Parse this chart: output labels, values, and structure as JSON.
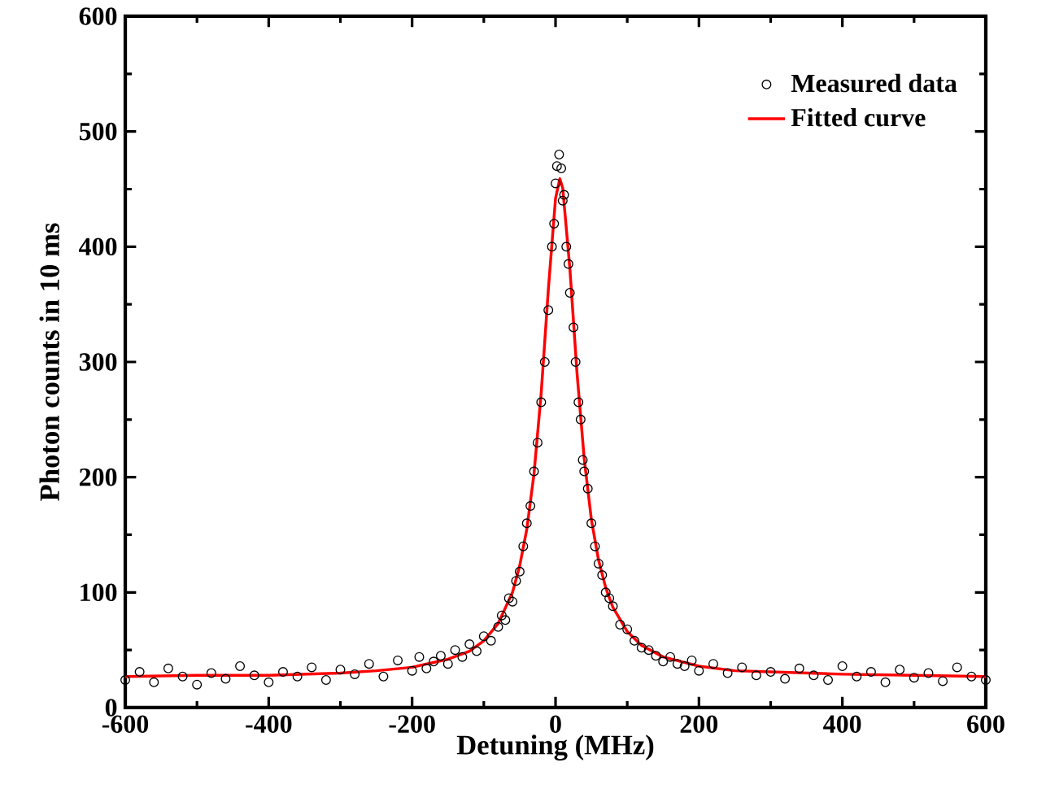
{
  "chart_data": {
    "type": "scatter",
    "xlabel": "Detuning (MHz)",
    "ylabel": "Photon counts in 10 ms",
    "xlim": [
      -600,
      600
    ],
    "ylim": [
      0,
      600
    ],
    "xticks": [
      -600,
      -400,
      -200,
      0,
      200,
      400,
      600
    ],
    "yticks": [
      0,
      100,
      200,
      300,
      400,
      500,
      600
    ],
    "grid": false,
    "legend": "top right",
    "series": [
      {
        "name": "Measured data",
        "marker": "circle",
        "color": "#000000",
        "x": [
          -600,
          -580,
          -560,
          -540,
          -520,
          -500,
          -480,
          -460,
          -440,
          -420,
          -400,
          -380,
          -360,
          -340,
          -320,
          -300,
          -280,
          -260,
          -240,
          -220,
          -200,
          -190,
          -180,
          -170,
          -160,
          -150,
          -140,
          -130,
          -120,
          -110,
          -100,
          -90,
          -80,
          -75,
          -70,
          -65,
          -60,
          -55,
          -50,
          -45,
          -40,
          -35,
          -30,
          -25,
          -20,
          -15,
          -10,
          -5,
          -2,
          0,
          2,
          5,
          8,
          10,
          12,
          15,
          18,
          20,
          25,
          28,
          32,
          35,
          38,
          40,
          45,
          50,
          55,
          60,
          65,
          70,
          75,
          80,
          90,
          100,
          110,
          120,
          130,
          140,
          150,
          160,
          170,
          180,
          190,
          200,
          220,
          240,
          260,
          280,
          300,
          320,
          340,
          360,
          380,
          400,
          420,
          440,
          460,
          480,
          500,
          520,
          540,
          560,
          580,
          600
        ],
        "values": [
          24,
          31,
          22,
          34,
          27,
          20,
          30,
          25,
          36,
          28,
          22,
          31,
          27,
          35,
          24,
          33,
          29,
          38,
          27,
          41,
          32,
          44,
          34,
          40,
          45,
          38,
          50,
          44,
          55,
          49,
          62,
          58,
          70,
          80,
          76,
          95,
          92,
          110,
          118,
          140,
          160,
          175,
          205,
          230,
          265,
          300,
          345,
          400,
          420,
          455,
          470,
          480,
          468,
          440,
          445,
          400,
          385,
          360,
          330,
          300,
          265,
          250,
          215,
          205,
          190,
          160,
          140,
          125,
          115,
          100,
          95,
          88,
          72,
          68,
          58,
          52,
          50,
          45,
          40,
          44,
          38,
          36,
          41,
          32,
          38,
          30,
          35,
          28,
          31,
          25,
          34,
          28,
          24,
          36,
          27,
          31,
          22,
          33,
          26,
          30,
          23,
          35,
          27,
          24
        ]
      },
      {
        "name": "Fitted curve",
        "type": "line",
        "marker": "none",
        "line_style": "solid",
        "color": "#ff0000",
        "x": [
          -600,
          -500,
          -400,
          -300,
          -250,
          -200,
          -150,
          -120,
          -100,
          -80,
          -60,
          -50,
          -40,
          -30,
          -20,
          -10,
          0,
          6,
          10,
          20,
          30,
          40,
          50,
          60,
          70,
          80,
          100,
          120,
          150,
          200,
          250,
          300,
          400,
          500,
          600
        ],
        "values": [
          27,
          28,
          28,
          30,
          32,
          35,
          42,
          49,
          58,
          73,
          100,
          123,
          155,
          203,
          273,
          363,
          442,
          459,
          451,
          381,
          290,
          216,
          163,
          128,
          104,
          87,
          66,
          54,
          44,
          36,
          32,
          31,
          29,
          28,
          27
        ]
      }
    ]
  }
}
